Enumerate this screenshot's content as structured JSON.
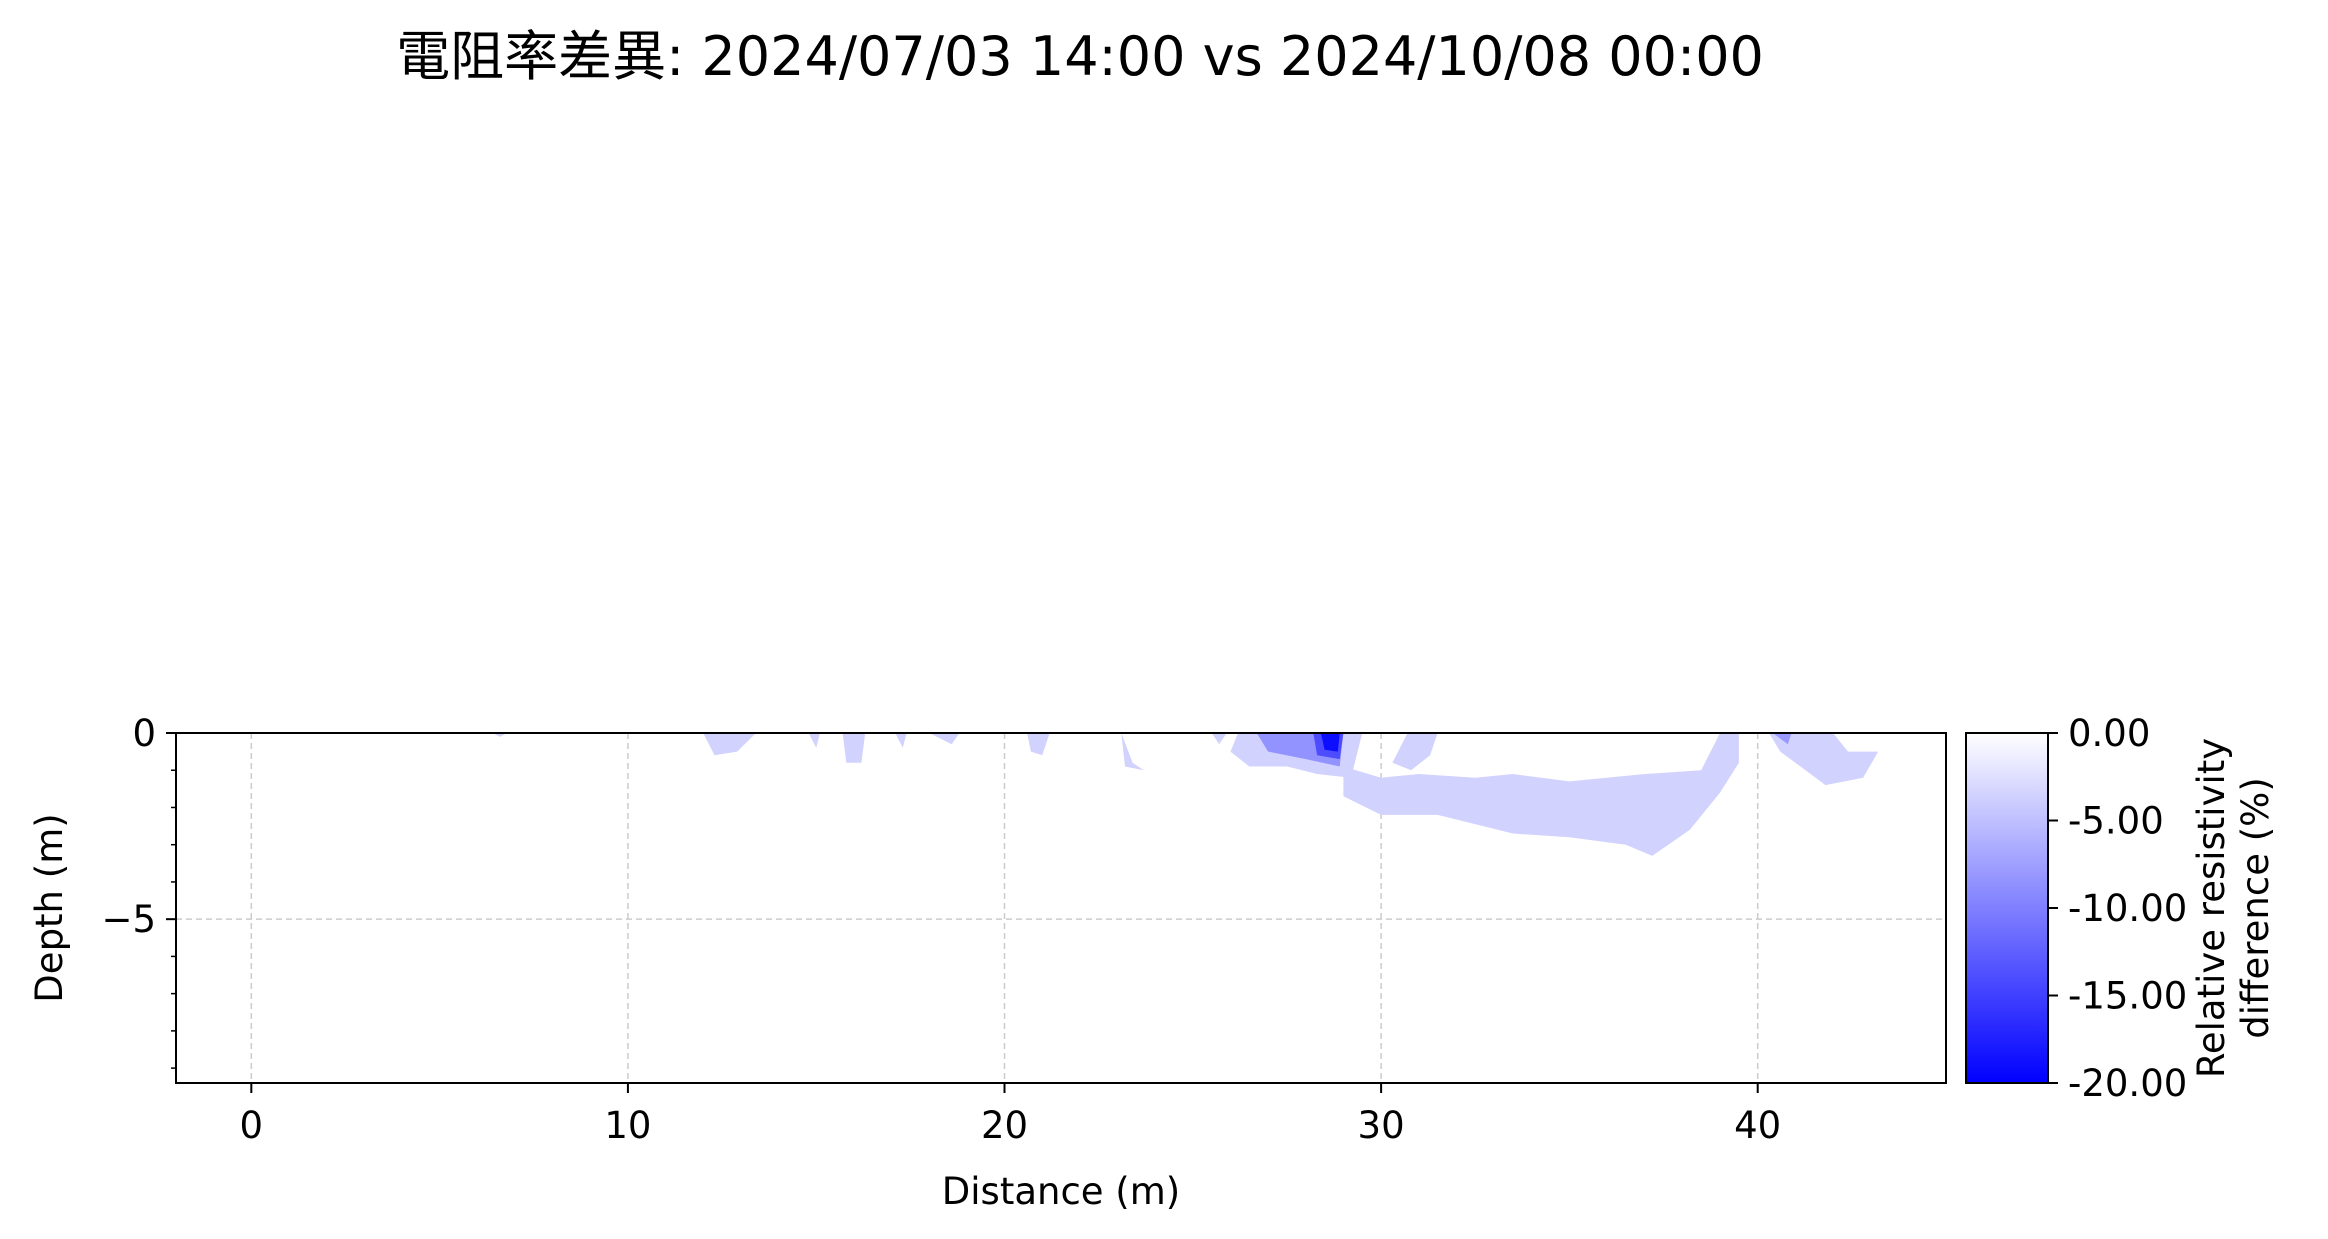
{
  "chart_data": {
    "type": "heatmap",
    "title": "電阻率差異: 2024/07/03 14:00 vs 2024/10/08 00:00",
    "xlabel": "Distance (m)",
    "ylabel": "Depth (m)",
    "xlim": [
      -2,
      45
    ],
    "ylim": [
      -9.4,
      0
    ],
    "x_ticks": [
      0,
      10,
      20,
      30,
      40
    ],
    "x_tick_labels": [
      "0",
      "10",
      "20",
      "30",
      "40"
    ],
    "y_ticks": [
      0,
      -5
    ],
    "y_tick_labels": [
      "0",
      "−5"
    ],
    "grid": true,
    "colorbar": {
      "label_lines": [
        "Relative resistivity",
        "difference (%)"
      ],
      "ticks": [
        0,
        -5,
        -10,
        -15,
        -20
      ],
      "tick_labels": [
        "0.00",
        "-5.00",
        "-10.00",
        "-15.00",
        "-20.00"
      ],
      "range": [
        -20,
        0
      ],
      "colors": {
        "zero": "#ffffff",
        "min": "#0000ff"
      }
    },
    "regions": [
      {
        "name": "main-anomaly",
        "value": -3.5,
        "points": [
          [
            29.0,
            -0.9
          ],
          [
            30.0,
            -1.2
          ],
          [
            31.0,
            -1.1
          ],
          [
            32.5,
            -1.2
          ],
          [
            33.5,
            -1.1
          ],
          [
            35.0,
            -1.3
          ],
          [
            37.0,
            -1.1
          ],
          [
            38.5,
            -1.0
          ],
          [
            39.0,
            0
          ],
          [
            39.5,
            0
          ],
          [
            39.5,
            -0.8
          ],
          [
            39.0,
            -1.6
          ],
          [
            38.2,
            -2.6
          ],
          [
            37.2,
            -3.3
          ],
          [
            36.5,
            -3.0
          ],
          [
            35.0,
            -2.8
          ],
          [
            33.5,
            -2.7
          ],
          [
            31.5,
            -2.2
          ],
          [
            30.0,
            -2.2
          ],
          [
            29.0,
            -1.7
          ]
        ]
      },
      {
        "name": "main-anomaly-upper",
        "value": -3.5,
        "points": [
          [
            30.7,
            0
          ],
          [
            31.5,
            0
          ],
          [
            31.3,
            -0.6
          ],
          [
            30.8,
            -1.0
          ],
          [
            30.3,
            -0.8
          ]
        ]
      },
      {
        "name": "anomaly-28m",
        "value": -3.5,
        "points": [
          [
            26.2,
            0
          ],
          [
            29.5,
            0
          ],
          [
            29.2,
            -1.2
          ],
          [
            28.3,
            -1.1
          ],
          [
            27.5,
            -0.9
          ],
          [
            26.5,
            -0.9
          ],
          [
            26.0,
            -0.5
          ]
        ]
      },
      {
        "name": "anomaly-28m-core",
        "value": -8.5,
        "points": [
          [
            26.7,
            0
          ],
          [
            29.0,
            0
          ],
          [
            28.9,
            -0.9
          ],
          [
            28.0,
            -0.7
          ],
          [
            27.0,
            -0.5
          ]
        ]
      },
      {
        "name": "anomaly-28m-strong",
        "value": -14,
        "points": [
          [
            28.2,
            0
          ],
          [
            29.0,
            0
          ],
          [
            28.9,
            -0.7
          ],
          [
            28.3,
            -0.6
          ]
        ]
      },
      {
        "name": "anomaly-28m-peak",
        "value": -19,
        "points": [
          [
            28.4,
            0
          ],
          [
            28.9,
            0
          ],
          [
            28.85,
            -0.5
          ],
          [
            28.5,
            -0.45
          ]
        ]
      },
      {
        "name": "anomaly-41m",
        "value": -3.5,
        "points": [
          [
            40.3,
            0
          ],
          [
            42.0,
            0
          ],
          [
            42.4,
            -0.5
          ],
          [
            43.2,
            -0.5
          ],
          [
            42.8,
            -1.2
          ],
          [
            41.8,
            -1.4
          ],
          [
            40.6,
            -0.5
          ]
        ]
      },
      {
        "name": "anomaly-41m-core",
        "value": -8,
        "points": [
          [
            40.4,
            0
          ],
          [
            40.9,
            0
          ],
          [
            40.8,
            -0.3
          ]
        ]
      },
      {
        "name": "spot-12m",
        "value": -3.5,
        "points": [
          [
            12.0,
            0
          ],
          [
            13.4,
            0
          ],
          [
            12.9,
            -0.5
          ],
          [
            12.3,
            -0.6
          ]
        ]
      },
      {
        "name": "spot-15m",
        "value": -3.5,
        "points": [
          [
            14.8,
            0
          ],
          [
            15.1,
            0
          ],
          [
            15.0,
            -0.4
          ]
        ]
      },
      {
        "name": "spot-16m",
        "value": -3.5,
        "points": [
          [
            15.7,
            0
          ],
          [
            16.3,
            0
          ],
          [
            16.2,
            -0.8
          ],
          [
            15.8,
            -0.8
          ]
        ]
      },
      {
        "name": "spot-17m",
        "value": -3.5,
        "points": [
          [
            17.1,
            0
          ],
          [
            17.4,
            0
          ],
          [
            17.3,
            -0.4
          ]
        ]
      },
      {
        "name": "spot-18m",
        "value": -3.5,
        "points": [
          [
            18.0,
            0
          ],
          [
            18.8,
            0
          ],
          [
            18.6,
            -0.3
          ]
        ]
      },
      {
        "name": "spot-21m",
        "value": -3.5,
        "points": [
          [
            20.6,
            0
          ],
          [
            21.2,
            0
          ],
          [
            21.0,
            -0.6
          ],
          [
            20.7,
            -0.5
          ]
        ]
      },
      {
        "name": "spot-23m",
        "value": -3.5,
        "points": [
          [
            23.1,
            0
          ],
          [
            23.4,
            -0.8
          ],
          [
            23.7,
            -1.0
          ],
          [
            23.2,
            -0.9
          ]
        ]
      },
      {
        "name": "spot-25m",
        "value": -3.5,
        "points": [
          [
            25.5,
            0
          ],
          [
            25.9,
            0
          ],
          [
            25.7,
            -0.3
          ]
        ]
      },
      {
        "name": "spot-6m",
        "value": -3.5,
        "points": [
          [
            6.4,
            0
          ],
          [
            6.8,
            0
          ],
          [
            6.6,
            -0.1
          ]
        ]
      }
    ]
  }
}
